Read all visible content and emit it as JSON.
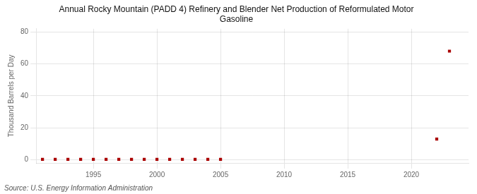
{
  "chart_data": {
    "type": "scatter",
    "title": [
      "Annual Rocky Mountain (PADD 4) Refinery and Blender Net Production of Reformulated Motor",
      "Gasoline"
    ],
    "y_label": "Thousand Barrels per Day",
    "annotation": "Source: U.S. Energy Information Administration",
    "x": [
      1991,
      1992,
      1993,
      1994,
      1995,
      1996,
      1997,
      1998,
      1999,
      2000,
      2001,
      2002,
      2003,
      2004,
      2005,
      2022,
      2023
    ],
    "values": [
      0.3,
      0.3,
      0.3,
      0.3,
      0.3,
      0.3,
      0.3,
      0.3,
      0.3,
      0.3,
      0.3,
      0.3,
      0.3,
      0.3,
      0.3,
      13.0,
      68.0
    ],
    "color": "#aa0000",
    "marker": "square",
    "xlim": [
      1990.5,
      2024.5
    ],
    "xticks": [
      1995,
      2000,
      2005,
      2010,
      2015,
      2020
    ],
    "ylim": [
      -2,
      82
    ],
    "yticks": [
      0,
      20,
      40,
      60,
      80
    ],
    "grid": true
  }
}
